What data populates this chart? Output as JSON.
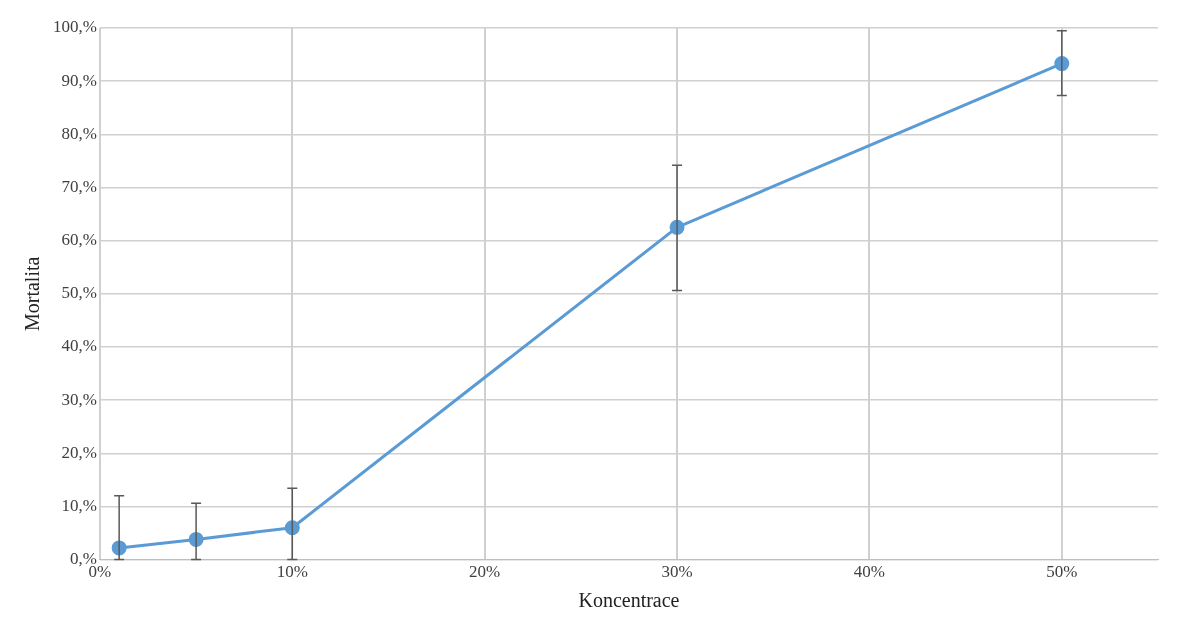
{
  "chart_data": {
    "type": "line",
    "xlabel": "Koncentrace",
    "ylabel": "Mortalita",
    "x": [
      1,
      5,
      10,
      30,
      50
    ],
    "series": [
      {
        "color": "#5b9bd5",
        "values": [
          2.2,
          3.8,
          6.0,
          62.5,
          93.3
        ],
        "errors": [
          [
            0,
            12.0
          ],
          [
            0,
            10.6
          ],
          [
            0,
            13.4
          ],
          [
            50.6,
            74.2
          ],
          [
            87.3,
            99.5
          ]
        ]
      }
    ],
    "xlim": [
      0,
      55
    ],
    "xticks": [
      {
        "value": 0,
        "label": "0%"
      },
      {
        "value": 10,
        "label": "10%"
      },
      {
        "value": 20,
        "label": "20%"
      },
      {
        "value": 30,
        "label": "30%"
      },
      {
        "value": 40,
        "label": "40%"
      },
      {
        "value": 50,
        "label": "50%"
      }
    ],
    "ylim": [
      0,
      100
    ],
    "yticks": [
      {
        "value": 0,
        "label": "0,%"
      },
      {
        "value": 10,
        "label": "10,%"
      },
      {
        "value": 20,
        "label": "20,%"
      },
      {
        "value": 30,
        "label": "30,%"
      },
      {
        "value": 40,
        "label": "40,%"
      },
      {
        "value": 50,
        "label": "50,%"
      },
      {
        "value": 60,
        "label": "60,%"
      },
      {
        "value": 70,
        "label": "70,%"
      },
      {
        "value": 80,
        "label": "80,%"
      },
      {
        "value": 90,
        "label": "90,%"
      },
      {
        "value": 100,
        "label": "100,%"
      }
    ],
    "grid": true,
    "marker": "circle",
    "line_style": "solid",
    "legend": false
  }
}
